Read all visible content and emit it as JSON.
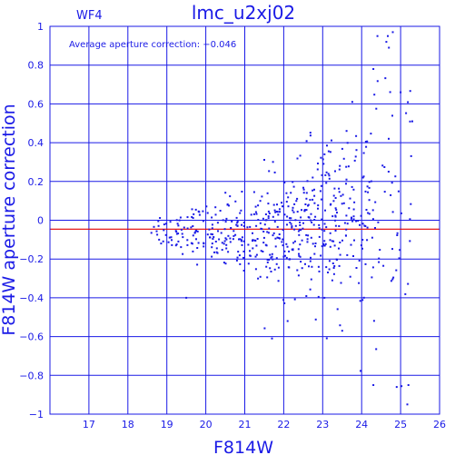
{
  "chart_data": {
    "type": "scatter",
    "title": "lmc_u2xj02",
    "corner_label": "WF4",
    "annotation": "Average aperture correction: −0.046",
    "xlabel": "F814W",
    "ylabel": "F814W aperture correction",
    "xlim": [
      16,
      26
    ],
    "ylim": [
      -1,
      1
    ],
    "x_ticks": [
      "17",
      "18",
      "19",
      "20",
      "21",
      "22",
      "23",
      "24",
      "25",
      "26"
    ],
    "y_ticks": [
      "1",
      "0.8",
      "0.6",
      "0.4",
      "0.2",
      "0",
      "−0.2",
      "−0.4",
      "−0.6",
      "−0.8",
      "−1"
    ],
    "grid": true,
    "reference_lines": [
      {
        "y": 0,
        "color": "#1a1ae6"
      },
      {
        "y": -0.046,
        "color": "#e00000"
      }
    ],
    "colors": {
      "axes": "#1a1ae6",
      "points": "#1a1ae6",
      "average_line": "#e00000"
    },
    "points_note": "",
    "clusters": [
      {
        "x_range": [
          18.6,
          19.4
        ],
        "y_center": -0.05,
        "y_spread": 0.05,
        "count": 35
      },
      {
        "x_range": [
          19.4,
          20.5
        ],
        "y_center": -0.06,
        "y_spread": 0.07,
        "count": 70
      },
      {
        "x_range": [
          20.5,
          21.5
        ],
        "y_center": -0.07,
        "y_spread": 0.1,
        "count": 90
      },
      {
        "x_range": [
          21.5,
          22.5
        ],
        "y_center": -0.07,
        "y_spread": 0.14,
        "count": 130
      },
      {
        "x_range": [
          22.5,
          23.5
        ],
        "y_center": -0.03,
        "y_spread": 0.2,
        "count": 140
      },
      {
        "x_range": [
          23.5,
          24.3
        ],
        "y_center": 0.02,
        "y_spread": 0.28,
        "count": 80
      },
      {
        "x_range": [
          24.3,
          25.3
        ],
        "y_center": 0.1,
        "y_spread": 0.4,
        "count": 50
      }
    ],
    "outliers": [
      {
        "x": 19.5,
        "y": -0.4
      },
      {
        "x": 21.7,
        "y": -0.61
      },
      {
        "x": 24.7,
        "y": 0.89
      },
      {
        "x": 24.8,
        "y": 0.97
      },
      {
        "x": 24.3,
        "y": 0.78
      },
      {
        "x": 25.3,
        "y": 0.51
      },
      {
        "x": 25.0,
        "y": 0.66
      },
      {
        "x": 25.2,
        "y": -0.85
      },
      {
        "x": 24.9,
        "y": -0.86
      },
      {
        "x": 24.3,
        "y": -0.85
      },
      {
        "x": 23.5,
        "y": -0.57
      },
      {
        "x": 22.1,
        "y": -0.52
      }
    ]
  }
}
